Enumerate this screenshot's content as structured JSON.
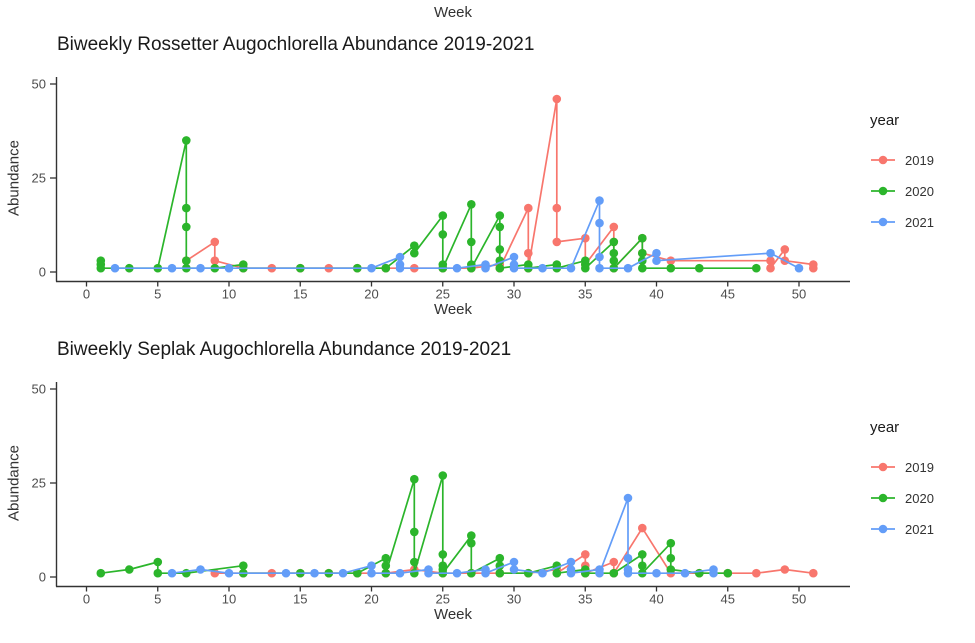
{
  "figure": {
    "top_axis_label": "Week",
    "background": "#ffffff",
    "axis_line_color": "#333333",
    "tick_text_color": "#4d4d4d",
    "title_text_color": "#1a1a1a"
  },
  "chart_data": [
    {
      "type": "line",
      "title": "Biweekly Rossetter Augochlorella Abundance 2019-2021",
      "xlabel": "Week",
      "ylabel": "Abundance",
      "xlim": [
        -2,
        53
      ],
      "ylim": [
        0,
        50
      ],
      "x_ticks": [
        0,
        5,
        10,
        15,
        20,
        25,
        30,
        35,
        40,
        45,
        50
      ],
      "y_ticks": [
        0,
        25,
        50
      ],
      "grid": false,
      "legend_title": "year",
      "legend_position": "right",
      "series": [
        {
          "name": "2019",
          "color": "#F8766D",
          "points": [
            [
              7,
              3
            ],
            [
              9,
              8
            ],
            [
              9,
              3
            ],
            [
              11,
              1
            ],
            [
              13,
              1
            ],
            [
              15,
              1
            ],
            [
              17,
              1
            ],
            [
              19,
              1
            ],
            [
              21,
              1
            ],
            [
              23,
              1
            ],
            [
              25,
              1
            ],
            [
              27,
              1
            ],
            [
              29,
              2
            ],
            [
              29,
              1
            ],
            [
              31,
              17
            ],
            [
              31,
              5
            ],
            [
              31,
              1
            ],
            [
              33,
              46
            ],
            [
              33,
              17
            ],
            [
              33,
              8
            ],
            [
              35,
              9
            ],
            [
              35,
              2
            ],
            [
              37,
              12
            ],
            [
              37,
              8
            ],
            [
              37,
              1
            ],
            [
              39,
              9
            ],
            [
              39,
              5
            ],
            [
              41,
              3
            ],
            [
              48,
              3
            ],
            [
              48,
              1
            ],
            [
              49,
              6
            ],
            [
              49,
              3
            ],
            [
              51,
              2
            ],
            [
              51,
              1
            ]
          ]
        },
        {
          "name": "2020",
          "color": "#2BB52B",
          "points": [
            [
              1,
              3
            ],
            [
              1,
              2
            ],
            [
              1,
              1
            ],
            [
              3,
              1
            ],
            [
              5,
              1
            ],
            [
              7,
              35
            ],
            [
              7,
              17
            ],
            [
              7,
              12
            ],
            [
              7,
              3
            ],
            [
              7,
              1
            ],
            [
              9,
              1
            ],
            [
              11,
              2
            ],
            [
              11,
              1
            ],
            [
              15,
              1
            ],
            [
              19,
              1
            ],
            [
              21,
              1
            ],
            [
              23,
              7
            ],
            [
              23,
              5
            ],
            [
              25,
              15
            ],
            [
              25,
              10
            ],
            [
              25,
              2
            ],
            [
              25,
              1
            ],
            [
              27,
              18
            ],
            [
              27,
              8
            ],
            [
              27,
              2
            ],
            [
              27,
              1
            ],
            [
              29,
              15
            ],
            [
              29,
              12
            ],
            [
              29,
              6
            ],
            [
              29,
              3
            ],
            [
              29,
              1
            ],
            [
              31,
              2
            ],
            [
              31,
              1
            ],
            [
              33,
              2
            ],
            [
              33,
              1
            ],
            [
              35,
              3
            ],
            [
              35,
              2
            ],
            [
              35,
              1
            ],
            [
              37,
              8
            ],
            [
              37,
              5
            ],
            [
              37,
              3
            ],
            [
              37,
              1
            ],
            [
              39,
              9
            ],
            [
              39,
              5
            ],
            [
              39,
              3
            ],
            [
              39,
              1
            ],
            [
              41,
              1
            ],
            [
              43,
              1
            ],
            [
              47,
              1
            ]
          ]
        },
        {
          "name": "2021",
          "color": "#639DF8",
          "points": [
            [
              2,
              1
            ],
            [
              6,
              1
            ],
            [
              8,
              1
            ],
            [
              10,
              1
            ],
            [
              20,
              1
            ],
            [
              22,
              4
            ],
            [
              22,
              2
            ],
            [
              22,
              1
            ],
            [
              26,
              1
            ],
            [
              28,
              2
            ],
            [
              28,
              1
            ],
            [
              30,
              4
            ],
            [
              30,
              2
            ],
            [
              30,
              1
            ],
            [
              32,
              1
            ],
            [
              34,
              1
            ],
            [
              36,
              19
            ],
            [
              36,
              13
            ],
            [
              36,
              4
            ],
            [
              36,
              1
            ],
            [
              38,
              1
            ],
            [
              40,
              5
            ],
            [
              40,
              3
            ],
            [
              48,
              5
            ],
            [
              50,
              1
            ]
          ]
        }
      ]
    },
    {
      "type": "line",
      "title": "Biweekly Seplak Augochlorella Abundance 2019-2021",
      "xlabel": "Week",
      "ylabel": "Abundance",
      "xlim": [
        -2,
        53
      ],
      "ylim": [
        0,
        50
      ],
      "x_ticks": [
        0,
        5,
        10,
        15,
        20,
        25,
        30,
        35,
        40,
        45,
        50
      ],
      "y_ticks": [
        0,
        25,
        50
      ],
      "grid": false,
      "legend_title": "year",
      "legend_position": "right",
      "series": [
        {
          "name": "2019",
          "color": "#F8766D",
          "points": [
            [
              9,
              1
            ],
            [
              11,
              1
            ],
            [
              13,
              1
            ],
            [
              15,
              1
            ],
            [
              17,
              1
            ],
            [
              19,
              1
            ],
            [
              21,
              1
            ],
            [
              23,
              2
            ],
            [
              25,
              1
            ],
            [
              27,
              1
            ],
            [
              29,
              1
            ],
            [
              31,
              1
            ],
            [
              33,
              2
            ],
            [
              33,
              1
            ],
            [
              35,
              6
            ],
            [
              35,
              3
            ],
            [
              35,
              1
            ],
            [
              37,
              4
            ],
            [
              37,
              1
            ],
            [
              39,
              13
            ],
            [
              41,
              1
            ],
            [
              43,
              1
            ],
            [
              45,
              1
            ],
            [
              47,
              1
            ],
            [
              49,
              2
            ],
            [
              51,
              1
            ]
          ]
        },
        {
          "name": "2020",
          "color": "#2BB52B",
          "points": [
            [
              1,
              1
            ],
            [
              3,
              2
            ],
            [
              5,
              4
            ],
            [
              5,
              1
            ],
            [
              7,
              1
            ],
            [
              11,
              3
            ],
            [
              11,
              1
            ],
            [
              15,
              1
            ],
            [
              17,
              1
            ],
            [
              19,
              1
            ],
            [
              21,
              5
            ],
            [
              21,
              3
            ],
            [
              21,
              1
            ],
            [
              23,
              26
            ],
            [
              23,
              12
            ],
            [
              23,
              4
            ],
            [
              23,
              1
            ],
            [
              25,
              27
            ],
            [
              25,
              6
            ],
            [
              25,
              3
            ],
            [
              25,
              2
            ],
            [
              25,
              1
            ],
            [
              27,
              11
            ],
            [
              27,
              9
            ],
            [
              27,
              1
            ],
            [
              29,
              5
            ],
            [
              29,
              3
            ],
            [
              29,
              1
            ],
            [
              31,
              1
            ],
            [
              33,
              3
            ],
            [
              33,
              1
            ],
            [
              35,
              2
            ],
            [
              35,
              1
            ],
            [
              37,
              1
            ],
            [
              39,
              6
            ],
            [
              39,
              3
            ],
            [
              39,
              1
            ],
            [
              41,
              9
            ],
            [
              41,
              5
            ],
            [
              41,
              2
            ],
            [
              43,
              1
            ],
            [
              45,
              1
            ]
          ]
        },
        {
          "name": "2021",
          "color": "#639DF8",
          "points": [
            [
              6,
              1
            ],
            [
              8,
              2
            ],
            [
              10,
              1
            ],
            [
              14,
              1
            ],
            [
              16,
              1
            ],
            [
              18,
              1
            ],
            [
              20,
              3
            ],
            [
              20,
              1
            ],
            [
              22,
              1
            ],
            [
              24,
              2
            ],
            [
              24,
              1
            ],
            [
              26,
              1
            ],
            [
              28,
              2
            ],
            [
              28,
              1
            ],
            [
              30,
              4
            ],
            [
              30,
              2
            ],
            [
              32,
              1
            ],
            [
              34,
              4
            ],
            [
              34,
              2
            ],
            [
              34,
              1
            ],
            [
              36,
              2
            ],
            [
              36,
              1
            ],
            [
              38,
              21
            ],
            [
              38,
              5
            ],
            [
              38,
              2
            ],
            [
              38,
              1
            ],
            [
              40,
              1
            ],
            [
              42,
              1
            ],
            [
              44,
              2
            ],
            [
              44,
              1
            ]
          ]
        }
      ]
    }
  ]
}
